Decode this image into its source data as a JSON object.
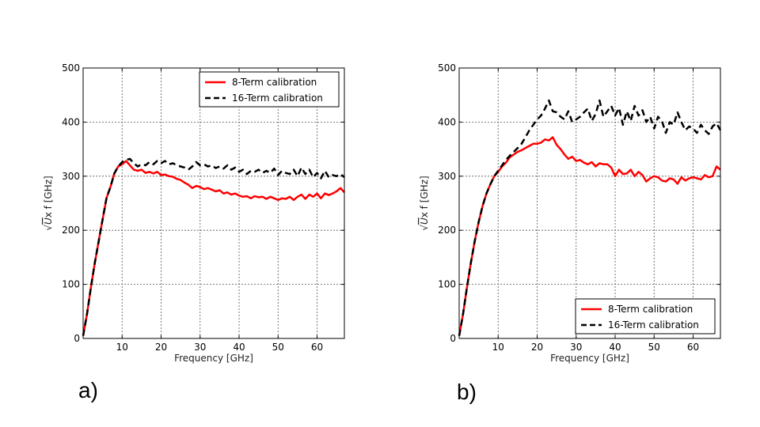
{
  "chart_data": [
    {
      "type": "line",
      "panel_label": "a)",
      "xlabel": "Frequency [GHz]",
      "ylabel_prefix": "√",
      "ylabel_italic": "U",
      "ylabel_suffix": "x f [GHz]",
      "xlim": [
        0,
        67
      ],
      "ylim": [
        0,
        500
      ],
      "xticks": [
        10,
        20,
        30,
        40,
        50,
        60
      ],
      "yticks": [
        0,
        100,
        200,
        300,
        400,
        500
      ],
      "grid": true,
      "legend_position": "top-right",
      "series": [
        {
          "name": "8-Term calibration",
          "color": "#ff0000",
          "style": "solid",
          "x": [
            0,
            1,
            2,
            3,
            4,
            5,
            6,
            7,
            8,
            9,
            10,
            11,
            12,
            13,
            14,
            15,
            16,
            17,
            18,
            19,
            20,
            21,
            22,
            23,
            24,
            25,
            26,
            27,
            28,
            29,
            30,
            31,
            32,
            33,
            34,
            35,
            36,
            37,
            38,
            39,
            40,
            41,
            42,
            43,
            44,
            45,
            46,
            47,
            48,
            49,
            50,
            51,
            52,
            53,
            54,
            55,
            56,
            57,
            58,
            59,
            60,
            61,
            62,
            63,
            64,
            65,
            66,
            67
          ],
          "y": [
            5,
            45,
            95,
            140,
            180,
            220,
            260,
            280,
            305,
            318,
            322,
            328,
            320,
            312,
            310,
            312,
            306,
            308,
            305,
            308,
            302,
            303,
            300,
            299,
            295,
            293,
            288,
            284,
            278,
            282,
            280,
            276,
            278,
            275,
            272,
            274,
            268,
            270,
            266,
            268,
            264,
            262,
            263,
            259,
            263,
            261,
            262,
            258,
            262,
            259,
            256,
            259,
            258,
            262,
            256,
            262,
            266,
            258,
            266,
            262,
            268,
            259,
            268,
            265,
            268,
            272,
            278,
            270
          ]
        },
        {
          "name": "16-Term calibration",
          "color": "#000000",
          "style": "dashed",
          "x": [
            0,
            1,
            2,
            3,
            4,
            5,
            6,
            7,
            8,
            9,
            10,
            11,
            12,
            13,
            14,
            15,
            16,
            17,
            18,
            19,
            20,
            21,
            22,
            23,
            24,
            25,
            26,
            27,
            28,
            29,
            30,
            31,
            32,
            33,
            34,
            35,
            36,
            37,
            38,
            39,
            40,
            41,
            42,
            43,
            44,
            45,
            46,
            47,
            48,
            49,
            50,
            51,
            52,
            53,
            54,
            55,
            56,
            57,
            58,
            59,
            60,
            61,
            62,
            63,
            64,
            65,
            66,
            67
          ],
          "y": [
            5,
            45,
            95,
            140,
            180,
            220,
            260,
            280,
            305,
            318,
            326,
            330,
            332,
            324,
            318,
            322,
            320,
            326,
            322,
            328,
            324,
            328,
            322,
            324,
            320,
            318,
            316,
            312,
            318,
            326,
            320,
            322,
            318,
            320,
            315,
            318,
            314,
            320,
            312,
            316,
            308,
            312,
            304,
            310,
            308,
            312,
            306,
            310,
            306,
            314,
            302,
            310,
            306,
            304,
            312,
            300,
            316,
            304,
            312,
            298,
            306,
            296,
            310,
            298,
            302,
            300,
            304,
            298
          ]
        }
      ]
    },
    {
      "type": "line",
      "panel_label": "b)",
      "xlabel": "Frequency [GHz]",
      "ylabel_prefix": "√",
      "ylabel_italic": "U",
      "ylabel_suffix": "x f [GHz]",
      "xlim": [
        0,
        67
      ],
      "ylim": [
        0,
        500
      ],
      "xticks": [
        10,
        20,
        30,
        40,
        50,
        60
      ],
      "yticks": [
        0,
        100,
        200,
        300,
        400,
        500
      ],
      "grid": true,
      "legend_position": "bottom-right",
      "series": [
        {
          "name": "8-Term calibration",
          "color": "#ff0000",
          "style": "solid",
          "x": [
            0,
            1,
            2,
            3,
            4,
            5,
            6,
            7,
            8,
            9,
            10,
            11,
            12,
            13,
            14,
            15,
            16,
            17,
            18,
            19,
            20,
            21,
            22,
            23,
            24,
            25,
            26,
            27,
            28,
            29,
            30,
            31,
            32,
            33,
            34,
            35,
            36,
            37,
            38,
            39,
            40,
            41,
            42,
            43,
            44,
            45,
            46,
            47,
            48,
            49,
            50,
            51,
            52,
            53,
            54,
            55,
            56,
            57,
            58,
            59,
            60,
            61,
            62,
            63,
            64,
            65,
            66,
            67
          ],
          "y": [
            5,
            45,
            95,
            140,
            180,
            215,
            245,
            268,
            285,
            300,
            308,
            318,
            325,
            335,
            340,
            345,
            348,
            352,
            356,
            360,
            360,
            362,
            368,
            366,
            372,
            358,
            350,
            340,
            332,
            336,
            328,
            330,
            325,
            322,
            326,
            318,
            324,
            322,
            322,
            316,
            300,
            312,
            304,
            305,
            312,
            300,
            308,
            302,
            290,
            296,
            300,
            298,
            292,
            290,
            296,
            294,
            286,
            298,
            292,
            296,
            298,
            296,
            294,
            302,
            298,
            300,
            318,
            312
          ]
        },
        {
          "name": "16-Term calibration",
          "color": "#000000",
          "style": "dashed",
          "x": [
            0,
            1,
            2,
            3,
            4,
            5,
            6,
            7,
            8,
            9,
            10,
            11,
            12,
            13,
            14,
            15,
            16,
            17,
            18,
            19,
            20,
            21,
            22,
            23,
            24,
            25,
            26,
            27,
            28,
            29,
            30,
            31,
            32,
            33,
            34,
            35,
            36,
            37,
            38,
            39,
            40,
            41,
            42,
            43,
            44,
            45,
            46,
            47,
            48,
            49,
            50,
            51,
            52,
            53,
            54,
            55,
            56,
            57,
            58,
            59,
            60,
            61,
            62,
            63,
            64,
            65,
            66,
            67
          ],
          "y": [
            5,
            45,
            95,
            140,
            180,
            215,
            245,
            268,
            285,
            300,
            310,
            320,
            330,
            338,
            345,
            352,
            360,
            372,
            385,
            395,
            405,
            412,
            425,
            440,
            420,
            418,
            410,
            405,
            420,
            400,
            405,
            410,
            418,
            425,
            402,
            415,
            440,
            410,
            420,
            430,
            412,
            426,
            395,
            420,
            402,
            430,
            412,
            422,
            400,
            410,
            388,
            410,
            402,
            380,
            400,
            395,
            418,
            400,
            385,
            392,
            388,
            380,
            395,
            385,
            378,
            392,
            398,
            385
          ]
        }
      ]
    }
  ]
}
